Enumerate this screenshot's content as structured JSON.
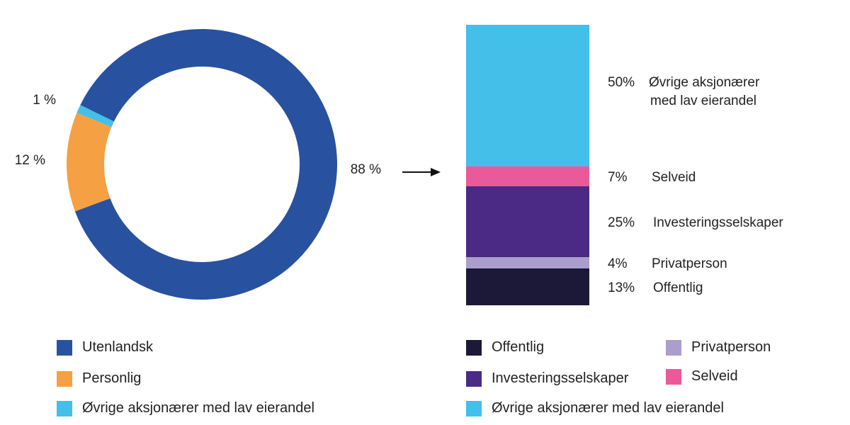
{
  "chart_data": [
    {
      "type": "pie",
      "variant": "donut",
      "slices": [
        {
          "name": "Utenlandsk",
          "value": 88,
          "label": "88 %",
          "color": "#2852a0"
        },
        {
          "name": "Personlig",
          "value": 12,
          "label": "12 %",
          "color": "#f5a042"
        },
        {
          "name": "Øvrige aksjonærer med lav eierandel",
          "value": 1,
          "label": "1 %",
          "color": "#43bfea"
        }
      ],
      "legend_placement": "bottom"
    },
    {
      "type": "bar",
      "variant": "stacked",
      "segments": [
        {
          "name": "Offentlig",
          "value": 13,
          "label": "13%",
          "text": "Offentlig",
          "color": "#1b1838"
        },
        {
          "name": "Privatperson",
          "value": 4,
          "label": "4%",
          "text": "Privatperson",
          "color": "#ab9dcc"
        },
        {
          "name": "Investeringsselskaper",
          "value": 25,
          "label": "25%",
          "text": "Investeringsselskaper",
          "color": "#4b2a85"
        },
        {
          "name": "Selveid",
          "value": 7,
          "label": "7%",
          "text": "Selveid",
          "color": "#ea5a9b"
        },
        {
          "name": "Øvrige aksjonærer med lav eierandel",
          "value": 50,
          "label": "50%",
          "text": [
            "Øvrige aksjonærer",
            "med lav eierandel"
          ],
          "color": "#43bfea"
        }
      ],
      "legend_placement": "bottom"
    }
  ],
  "legend_left": [
    "Utenlandsk",
    "Personlig",
    "Øvrige aksjonærer med lav eierandel"
  ],
  "legend_right": [
    "Offentlig",
    "Privatperson",
    "Investeringsselskaper",
    "Selveid",
    "Øvrige aksjonærer med lav eierandel"
  ]
}
